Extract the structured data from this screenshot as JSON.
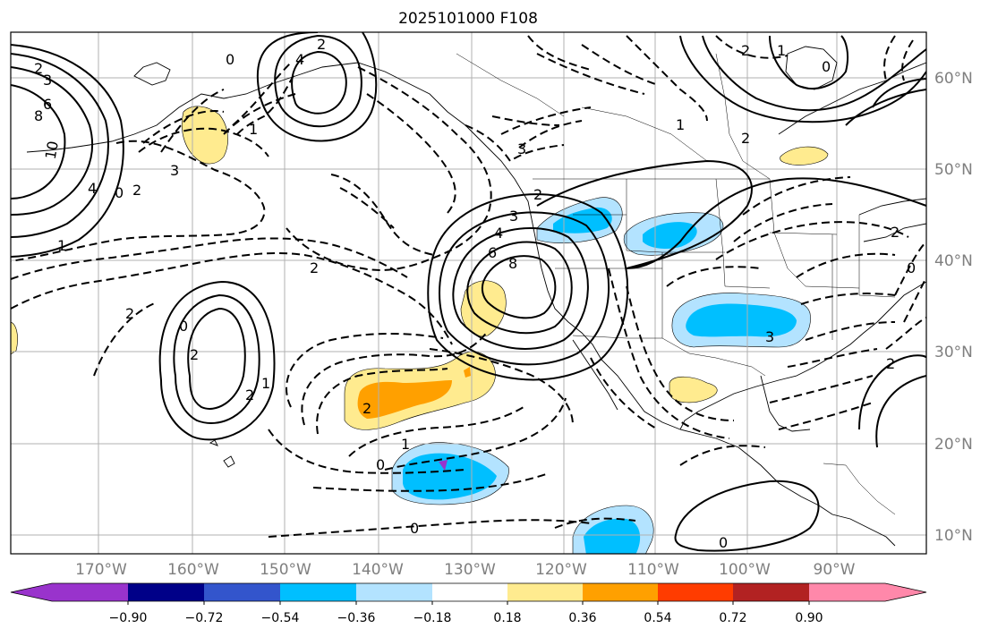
{
  "title": "2025101000 F108",
  "map": {
    "lon_labels": [
      "170°W",
      "160°W",
      "150°W",
      "140°W",
      "130°W",
      "120°W",
      "110°W",
      "100°W",
      "90°W"
    ],
    "lat_labels": [
      "60°N",
      "50°N",
      "40°N",
      "30°N",
      "20°N",
      "10°N"
    ],
    "contour_labels": [
      "2",
      "3",
      "6",
      "8",
      "10",
      "4",
      "0",
      "2",
      "3",
      "0",
      "2",
      "1",
      "1",
      "2",
      "3",
      "4",
      "6",
      "8",
      "2",
      "3",
      "4",
      "0",
      "1",
      "2",
      "2",
      "2",
      "0",
      "2",
      "2",
      "1",
      "2",
      "1",
      "0",
      "0",
      "3",
      "0",
      "2",
      "0",
      "2",
      "1"
    ]
  },
  "colorbar": {
    "ticks": [
      "−0.90",
      "−0.72",
      "−0.54",
      "−0.36",
      "−0.18",
      "0.18",
      "0.36",
      "0.54",
      "0.72",
      "0.90"
    ],
    "colors": [
      "#9933cc",
      "#000088",
      "#3355cc",
      "#00bfff",
      "#b3e3ff",
      "#ffffff",
      "#ffeb8f",
      "#ffa000",
      "#ff3c00",
      "#b22222",
      "#ff88aa"
    ]
  },
  "colors": {
    "yellow": "#ffeb8f",
    "orange": "#ffa000",
    "light_blue": "#b3e3ff",
    "blue": "#00bfff",
    "purple": "#9933cc",
    "grid": "#b0b0b0"
  }
}
